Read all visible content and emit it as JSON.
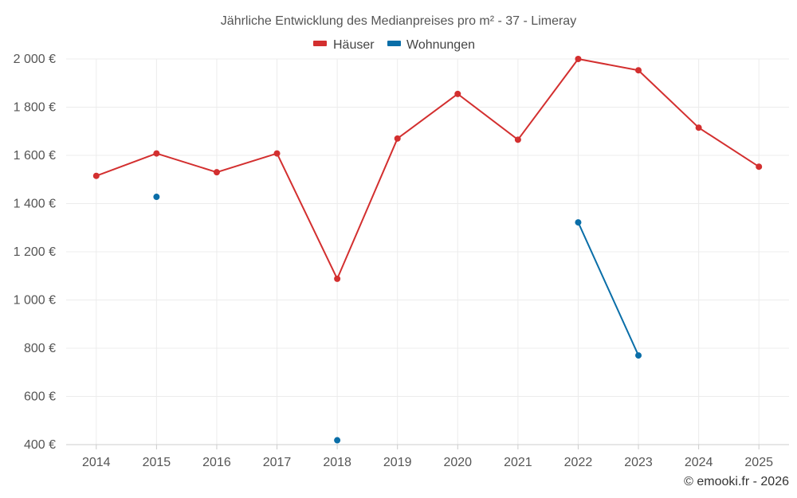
{
  "chart_data": {
    "type": "line",
    "title": "Jährliche Entwicklung des Medianpreises pro m² - 37 - Limeray",
    "xlabel": "",
    "ylabel": "",
    "categories": [
      "2014",
      "2015",
      "2016",
      "2017",
      "2018",
      "2019",
      "2020",
      "2021",
      "2022",
      "2023",
      "2024",
      "2025"
    ],
    "ylim": [
      400,
      2000
    ],
    "yticks": [
      400,
      600,
      800,
      1000,
      1200,
      1400,
      1600,
      1800,
      2000
    ],
    "ytick_labels": [
      "400 €",
      "600 €",
      "800 €",
      "1 000 €",
      "1 200 €",
      "1 400 €",
      "1 600 €",
      "1 800 €",
      "2 000 €"
    ],
    "grid": true,
    "legend_position": "top-center",
    "series": [
      {
        "name": "Häuser",
        "color": "#d32f2f",
        "values": [
          1515,
          1608,
          1530,
          1608,
          1088,
          1670,
          1855,
          1665,
          2000,
          1953,
          1715,
          1553
        ]
      },
      {
        "name": "Wohnungen",
        "color": "#0a6ea8",
        "values": [
          null,
          1428,
          null,
          null,
          418,
          null,
          null,
          null,
          1322,
          770,
          null,
          null
        ]
      }
    ]
  },
  "credit": "© emooki.fr - 2026"
}
